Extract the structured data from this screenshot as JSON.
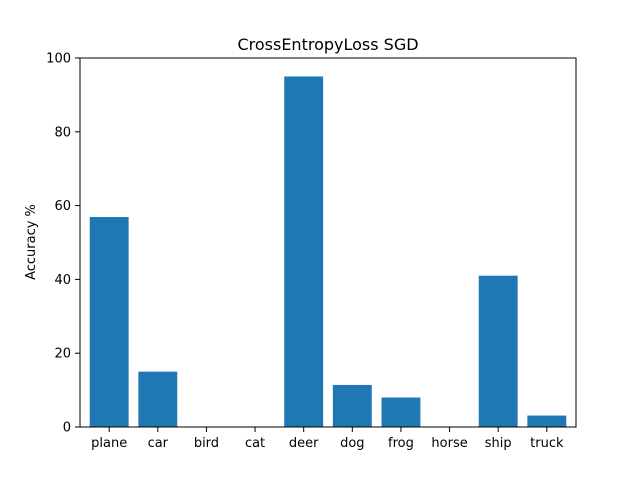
{
  "chart_data": {
    "type": "bar",
    "title": "CrossEntropyLoss SGD",
    "xlabel": "",
    "ylabel": "Accuracy %",
    "categories": [
      "plane",
      "car",
      "bird",
      "cat",
      "deer",
      "dog",
      "frog",
      "horse",
      "ship",
      "truck"
    ],
    "values": [
      56.9,
      15.0,
      0,
      0,
      95.0,
      11.4,
      8.0,
      0,
      41.0,
      3.1
    ],
    "ylim": [
      0,
      100
    ],
    "yticks": [
      0,
      20,
      40,
      60,
      80,
      100
    ],
    "bar_color": "#1f77b4",
    "grid": false,
    "legend": "none"
  }
}
